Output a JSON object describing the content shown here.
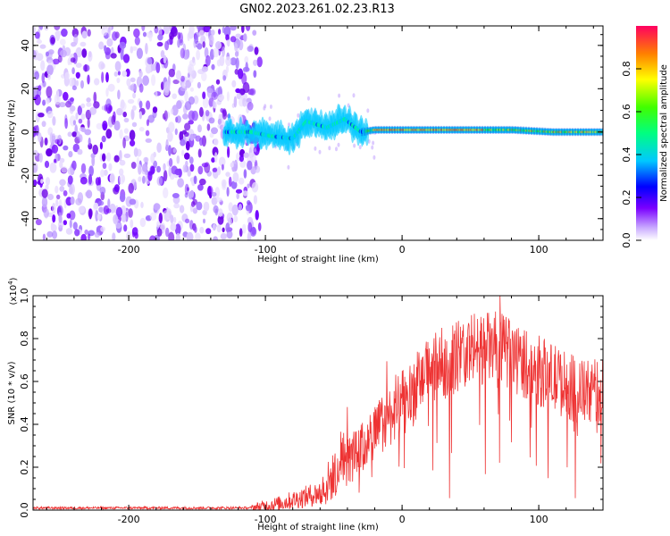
{
  "title": "GN02.2023.261.02.23.R13",
  "chart_data": [
    {
      "type": "heatmap",
      "xlabel": "Height of straight line (km)",
      "ylabel": "Frequency (Hz)",
      "xlim": [
        -270,
        147
      ],
      "ylim": [
        -50,
        49
      ],
      "xticks": [
        -200,
        -100,
        0,
        100
      ],
      "yticks": [
        -40,
        -20,
        0,
        20,
        40
      ],
      "noise_region": [
        -270,
        -108
      ],
      "signal_track": [
        {
          "x": -130,
          "y": 0
        },
        {
          "x": -110,
          "y": 0
        },
        {
          "x": -95,
          "y": -2
        },
        {
          "x": -80,
          "y": -3
        },
        {
          "x": -70,
          "y": 5
        },
        {
          "x": -55,
          "y": 2
        },
        {
          "x": -42,
          "y": 6
        },
        {
          "x": -30,
          "y": 0
        },
        {
          "x": -20,
          "y": 1
        },
        {
          "x": 0,
          "y": 1
        },
        {
          "x": 40,
          "y": 1
        },
        {
          "x": 80,
          "y": 1
        },
        {
          "x": 110,
          "y": 0
        },
        {
          "x": 147,
          "y": 0
        }
      ],
      "colorbar": {
        "label": "Normalized spectral amplitude",
        "range": [
          0,
          1
        ],
        "ticks": [
          "0.0",
          "0.2",
          "0.4",
          "0.6",
          "0.8"
        ]
      }
    },
    {
      "type": "line",
      "xlabel": "Height of straight line (km)",
      "ylabel": "SNR (10 * v/v)",
      "scale_label": "(x10",
      "scale_exp": "4",
      "scale_close": ")",
      "xlim": [
        -270,
        147
      ],
      "ylim": [
        0,
        1.0
      ],
      "xticks": [
        -200,
        -100,
        0,
        100
      ],
      "yticks": [
        "0.0",
        "0.2",
        "0.4",
        "0.6",
        "0.8",
        "1.0"
      ],
      "color": "#ee3333",
      "trend": [
        {
          "x": -270,
          "y": 0.01
        },
        {
          "x": -110,
          "y": 0.01
        },
        {
          "x": -90,
          "y": 0.03
        },
        {
          "x": -60,
          "y": 0.08
        },
        {
          "x": -45,
          "y": 0.2
        },
        {
          "x": -30,
          "y": 0.28
        },
        {
          "x": -15,
          "y": 0.4
        },
        {
          "x": 0,
          "y": 0.5
        },
        {
          "x": 20,
          "y": 0.65
        },
        {
          "x": 50,
          "y": 0.75
        },
        {
          "x": 70,
          "y": 0.76
        },
        {
          "x": 100,
          "y": 0.65
        },
        {
          "x": 130,
          "y": 0.55
        },
        {
          "x": 147,
          "y": 0.55
        }
      ]
    }
  ]
}
